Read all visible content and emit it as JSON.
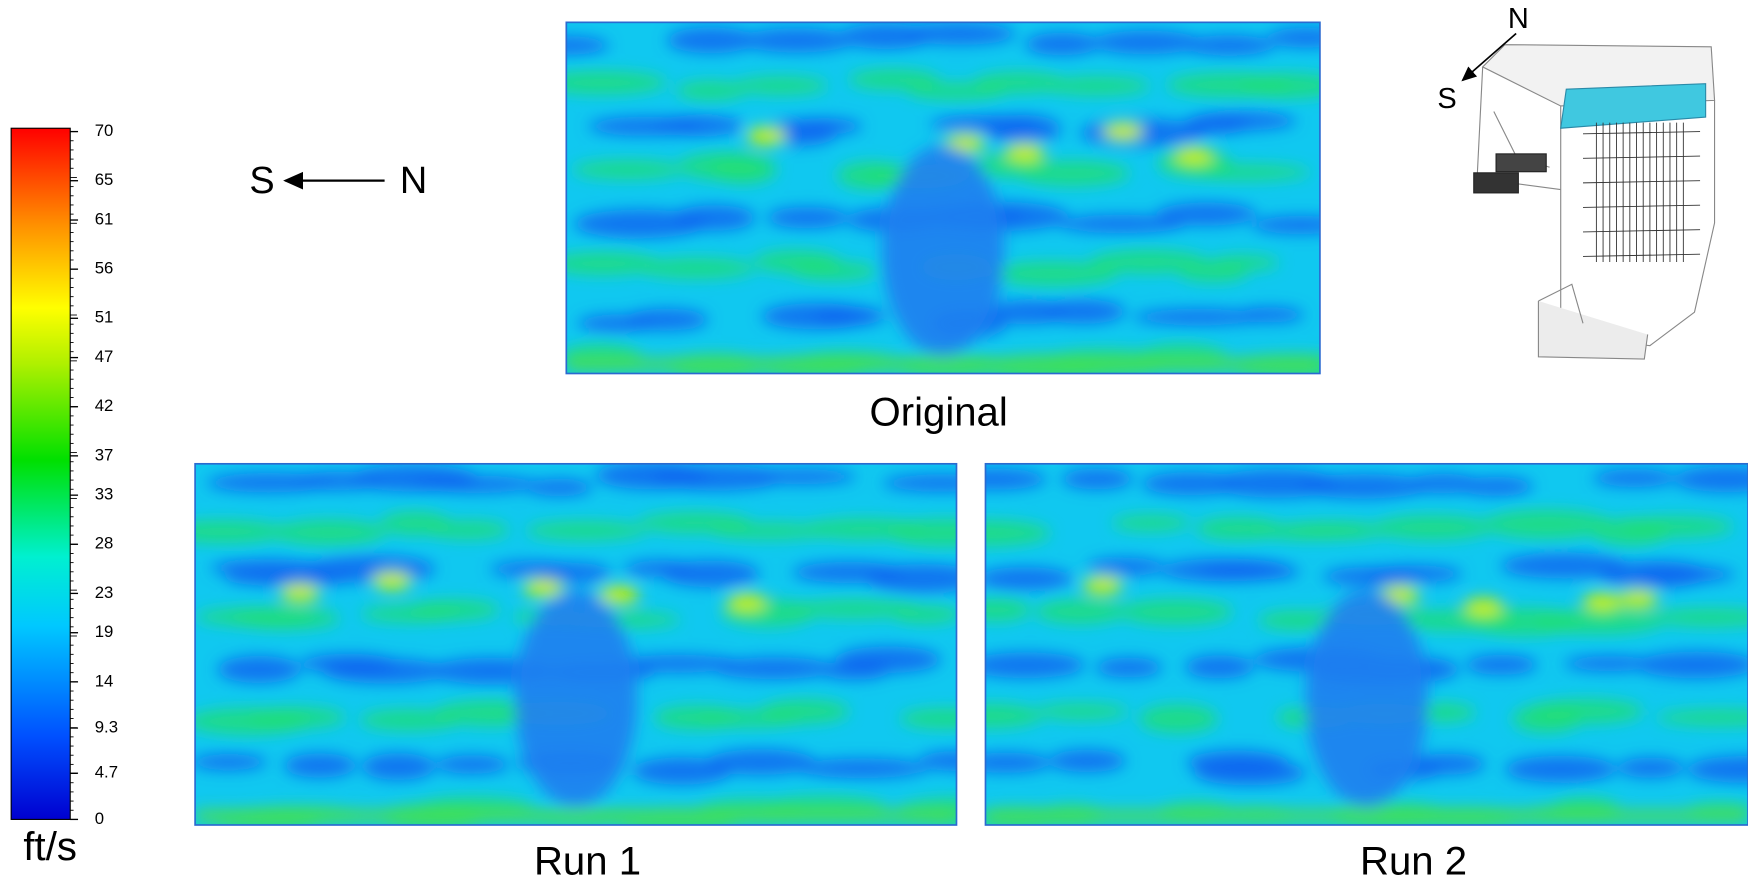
{
  "colorbar": {
    "ticks": [
      70,
      65,
      61,
      56,
      51,
      47,
      42,
      37,
      33,
      28,
      23,
      19,
      14,
      9.3,
      4.7,
      0
    ],
    "unit": "ft/s"
  },
  "compass": {
    "south": "S",
    "north": "N"
  },
  "inset": {
    "south": "S",
    "north": "N"
  },
  "panels": [
    {
      "label": "Original"
    },
    {
      "label": "Run 1"
    },
    {
      "label": "Run 2"
    }
  ]
}
